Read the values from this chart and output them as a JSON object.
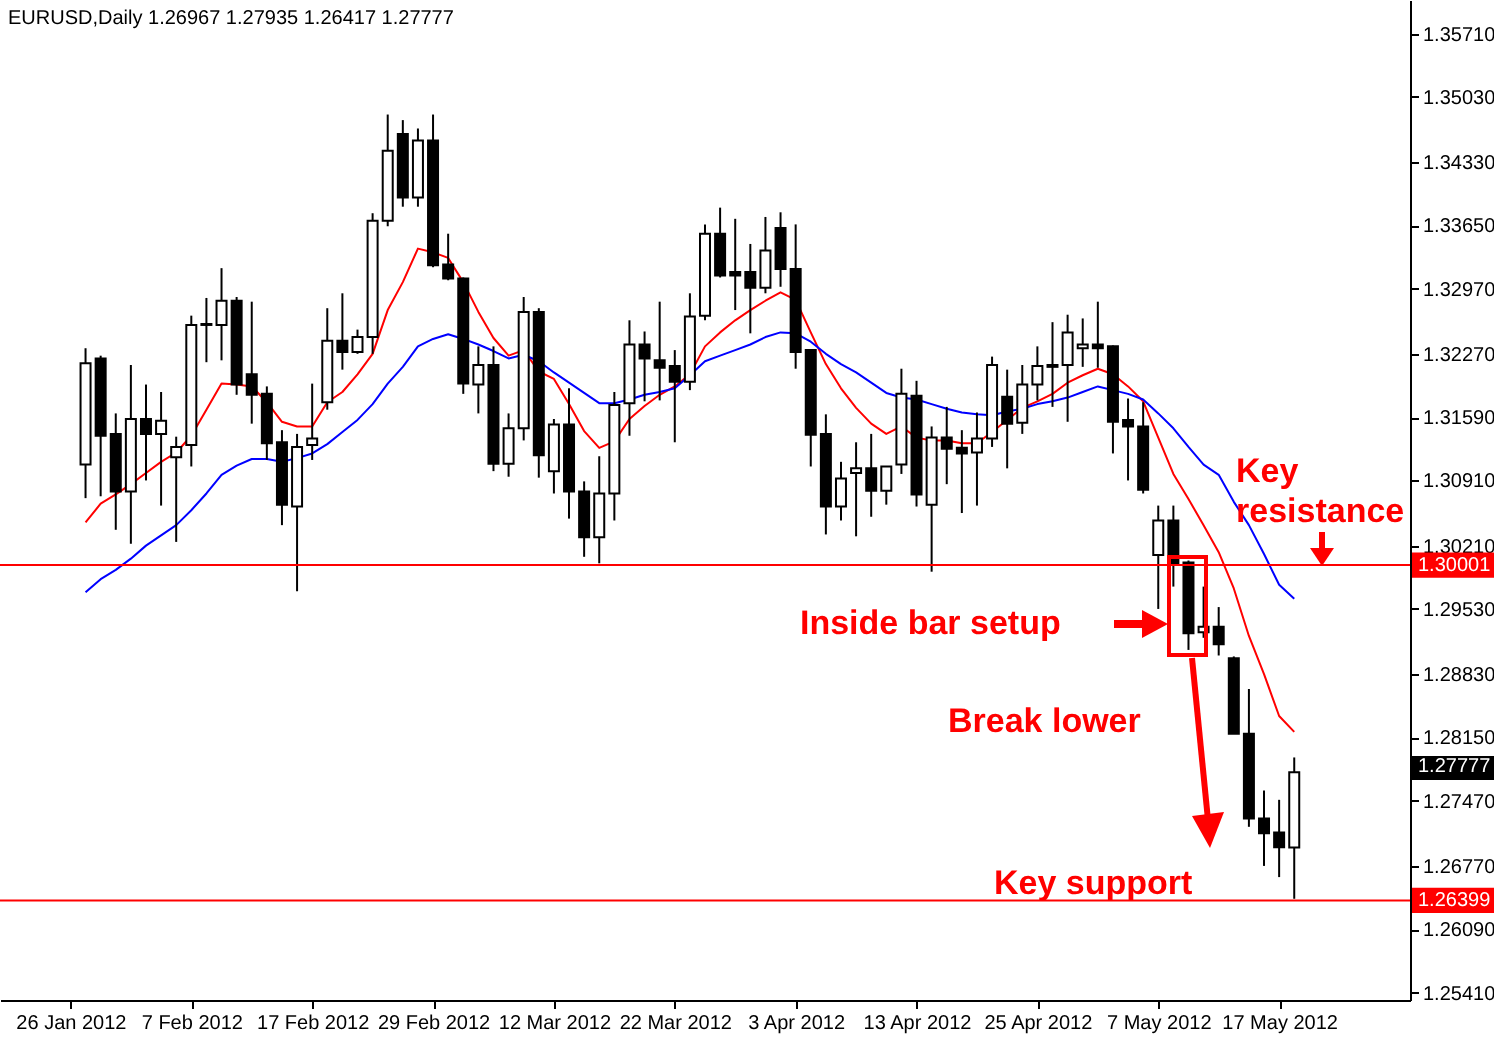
{
  "chart_data": {
    "type": "candlestick",
    "title": "EURUSD,Daily  1.26967 1.27935 1.26417 1.27777",
    "categories": [
      "26 Jan 2012",
      null,
      null,
      null,
      null,
      null,
      null,
      null,
      "7 Feb 2012",
      null,
      null,
      null,
      null,
      null,
      null,
      null,
      "17 Feb 2012",
      null,
      null,
      null,
      null,
      null,
      null,
      null,
      "29 Feb 2012",
      null,
      null,
      null,
      null,
      null,
      null,
      null,
      "12 Mar 2012",
      null,
      null,
      null,
      null,
      null,
      null,
      null,
      "22 Mar 2012",
      null,
      null,
      null,
      null,
      null,
      null,
      null,
      "3 Apr 2012",
      null,
      null,
      null,
      null,
      null,
      null,
      null,
      "13 Apr 2012",
      null,
      null,
      null,
      null,
      null,
      null,
      null,
      "25 Apr 2012",
      null,
      null,
      null,
      null,
      null,
      null,
      null,
      "7 May 2012",
      null,
      null,
      null,
      null,
      null,
      null,
      null,
      "17 May 2012",
      null
    ],
    "ohlc": [
      null,
      [
        1.3108,
        1.3233,
        1.3072,
        1.3217
      ],
      [
        1.3222,
        1.3225,
        1.3074,
        1.3139
      ],
      [
        1.3141,
        1.3163,
        1.3038,
        1.3079
      ],
      [
        1.3079,
        1.3215,
        1.3023,
        1.3157
      ],
      [
        1.3157,
        1.3194,
        1.3091,
        1.3141
      ],
      [
        1.3141,
        1.3186,
        1.3064,
        1.3155
      ],
      [
        1.3116,
        1.3138,
        1.3025,
        1.3127
      ],
      [
        1.3129,
        1.3268,
        1.3106,
        1.3258
      ],
      [
        1.3258,
        1.3287,
        1.3218,
        1.3259
      ],
      [
        1.3258,
        1.3319,
        1.322,
        1.3284
      ],
      [
        1.3284,
        1.3288,
        1.3183,
        1.3194
      ],
      [
        1.3205,
        1.3283,
        1.3152,
        1.3183
      ],
      [
        1.3184,
        1.3192,
        1.3113,
        1.3131
      ],
      [
        1.3132,
        1.3145,
        1.3043,
        1.3065
      ],
      [
        1.3063,
        1.3141,
        1.2972,
        1.3127
      ],
      [
        1.3129,
        1.3195,
        1.3113,
        1.3136
      ],
      [
        1.3175,
        1.3276,
        1.3167,
        1.3241
      ],
      [
        1.3241,
        1.3292,
        1.321,
        1.3229
      ],
      [
        1.3229,
        1.3253,
        1.3227,
        1.3245
      ],
      [
        1.3245,
        1.3378,
        1.3227,
        1.337
      ],
      [
        1.337,
        1.3484,
        1.3364,
        1.3445
      ],
      [
        1.3463,
        1.3478,
        1.3385,
        1.3395
      ],
      [
        1.3395,
        1.3469,
        1.3385,
        1.3456
      ],
      [
        1.3456,
        1.3484,
        1.332,
        1.3322
      ],
      [
        1.3323,
        1.3356,
        1.3306,
        1.3308
      ],
      [
        1.3308,
        1.3309,
        1.3184,
        1.3195
      ],
      [
        1.3194,
        1.3235,
        1.3163,
        1.3215
      ],
      [
        1.3215,
        1.3235,
        1.3101,
        1.3109
      ],
      [
        1.3109,
        1.3163,
        1.3095,
        1.3147
      ],
      [
        1.3147,
        1.3288,
        1.3134,
        1.3272
      ],
      [
        1.3272,
        1.3276,
        1.3094,
        1.3118
      ],
      [
        1.3101,
        1.3157,
        1.3077,
        1.3151
      ],
      [
        1.3151,
        1.319,
        1.305,
        1.3079
      ],
      [
        1.3079,
        1.309,
        1.3009,
        1.303
      ],
      [
        1.303,
        1.3117,
        1.3002,
        1.3077
      ],
      [
        1.3077,
        1.3186,
        1.3048,
        1.3172
      ],
      [
        1.3174,
        1.3263,
        1.3139,
        1.3237
      ],
      [
        1.3237,
        1.3251,
        1.3176,
        1.3222
      ],
      [
        1.322,
        1.3283,
        1.3177,
        1.3212
      ],
      [
        1.3214,
        1.3231,
        1.3132,
        1.3197
      ],
      [
        1.3197,
        1.3292,
        1.3188,
        1.3267
      ],
      [
        1.3268,
        1.3366,
        1.3263,
        1.3356
      ],
      [
        1.3356,
        1.3384,
        1.3309,
        1.3311
      ],
      [
        1.3315,
        1.3372,
        1.3274,
        1.3311
      ],
      [
        1.3315,
        1.3345,
        1.3249,
        1.3298
      ],
      [
        1.3298,
        1.3374,
        1.3292,
        1.3338
      ],
      [
        1.3362,
        1.3379,
        1.3299,
        1.3318
      ],
      [
        1.3318,
        1.3366,
        1.3211,
        1.3229
      ],
      [
        1.3231,
        1.3231,
        1.3106,
        1.314
      ],
      [
        1.3141,
        1.3162,
        1.3033,
        1.3063
      ],
      [
        1.3063,
        1.3111,
        1.3048,
        1.3093
      ],
      [
        1.3099,
        1.3132,
        1.3031,
        1.3104
      ],
      [
        1.3104,
        1.3141,
        1.3052,
        1.308
      ],
      [
        1.308,
        1.3106,
        1.3065,
        1.3106
      ],
      [
        1.3108,
        1.3211,
        1.3098,
        1.3184
      ],
      [
        1.3182,
        1.3198,
        1.3063,
        1.3076
      ],
      [
        1.3065,
        1.3149,
        1.2993,
        1.3137
      ],
      [
        1.3137,
        1.317,
        1.3087,
        1.3125
      ],
      [
        1.3126,
        1.3145,
        1.3056,
        1.312
      ],
      [
        1.3121,
        1.3164,
        1.3064,
        1.3136
      ],
      [
        1.3136,
        1.3224,
        1.3127,
        1.3215
      ],
      [
        1.3181,
        1.321,
        1.3104,
        1.3152
      ],
      [
        1.3153,
        1.3215,
        1.3141,
        1.3194
      ],
      [
        1.3194,
        1.3235,
        1.3177,
        1.3214
      ],
      [
        1.3215,
        1.3261,
        1.317,
        1.3213
      ],
      [
        1.3215,
        1.3269,
        1.3154,
        1.325
      ],
      [
        1.3233,
        1.3265,
        1.3213,
        1.3237
      ],
      [
        1.3237,
        1.3283,
        1.3212,
        1.3233
      ],
      [
        1.3235,
        1.3236,
        1.312,
        1.3154
      ],
      [
        1.3156,
        1.3179,
        1.3091,
        1.3149
      ],
      [
        1.3149,
        1.3175,
        1.3077,
        1.3081
      ],
      [
        1.3011,
        1.3064,
        1.2953,
        1.3048
      ],
      [
        1.3048,
        1.3064,
        1.2977,
        1.3002
      ],
      [
        1.3003,
        1.3005,
        1.2909,
        1.2927
      ],
      [
        1.2928,
        1.2977,
        1.2922,
        1.2934
      ],
      [
        1.2934,
        1.2955,
        1.2903,
        1.2915
      ],
      [
        1.29,
        1.2902,
        1.2819,
        1.2819
      ],
      [
        1.2819,
        1.2867,
        1.2719,
        1.2728
      ],
      [
        1.2728,
        1.2758,
        1.2677,
        1.2712
      ],
      [
        1.2713,
        1.2748,
        1.2665,
        1.2697
      ],
      [
        1.26967,
        1.27935,
        1.26417,
        1.27777
      ]
    ],
    "series": [
      {
        "type": "line",
        "color": "#ff0000",
        "values": [
          null,
          1.3046,
          1.3066,
          1.3076,
          1.3087,
          1.3099,
          1.3111,
          1.3121,
          1.3139,
          1.3167,
          1.3195,
          1.3194,
          1.3192,
          1.3175,
          1.3154,
          1.3149,
          1.3149,
          1.3175,
          1.3186,
          1.3205,
          1.3227,
          1.3274,
          1.3304,
          1.334,
          1.3336,
          1.333,
          1.3304,
          1.3272,
          1.3244,
          1.3225,
          1.3231,
          1.3208,
          1.32,
          1.3173,
          1.3144,
          1.3126,
          1.3133,
          1.3157,
          1.3171,
          1.3183,
          1.3192,
          1.3205,
          1.3235,
          1.325,
          1.3263,
          1.3274,
          1.3284,
          1.3293,
          1.3285,
          1.325,
          1.3216,
          1.319,
          1.3169,
          1.3152,
          1.3141,
          1.3149,
          1.3137,
          1.3134,
          1.3134,
          1.3131,
          1.3131,
          1.3143,
          1.3156,
          1.3169,
          1.3176,
          1.3184,
          1.3196,
          1.3204,
          1.3211,
          1.3205,
          1.3192,
          1.3176,
          1.3137,
          1.3098,
          1.3071,
          1.3043,
          1.3014,
          1.2975,
          1.2924,
          1.2883,
          1.2838,
          1.2821
        ]
      },
      {
        "type": "line",
        "color": "#0000ff",
        "values": [
          null,
          1.2971,
          1.2985,
          1.2995,
          1.3007,
          1.3021,
          1.3032,
          1.3043,
          1.3059,
          1.3077,
          1.3097,
          1.3107,
          1.3114,
          1.3114,
          1.3111,
          1.3115,
          1.312,
          1.313,
          1.3143,
          1.3156,
          1.3173,
          1.3195,
          1.3213,
          1.3235,
          1.3243,
          1.3248,
          1.3243,
          1.3237,
          1.323,
          1.3222,
          1.3226,
          1.3219,
          1.3207,
          1.3196,
          1.3185,
          1.3174,
          1.3174,
          1.3178,
          1.3183,
          1.3186,
          1.319,
          1.3204,
          1.3219,
          1.3225,
          1.3231,
          1.3237,
          1.3245,
          1.325,
          1.3249,
          1.324,
          1.3227,
          1.3216,
          1.3207,
          1.3196,
          1.3185,
          1.318,
          1.3178,
          1.3173,
          1.3168,
          1.3164,
          1.3162,
          1.3161,
          1.3165,
          1.3168,
          1.3173,
          1.3176,
          1.318,
          1.3186,
          1.3192,
          1.3188,
          1.3184,
          1.3178,
          1.3163,
          1.3147,
          1.3127,
          1.3108,
          1.3097,
          1.3068,
          1.3043,
          1.3012,
          1.2979,
          1.2964
        ]
      }
    ],
    "ylim": [
      1.2533,
      1.3607
    ],
    "yticks": [
      {
        "value": 1.3571,
        "label": "1.35710"
      },
      {
        "value": 1.3503,
        "label": "1.35030"
      },
      {
        "value": 1.3433,
        "label": "1.34330"
      },
      {
        "value": 1.3365,
        "label": "1.33650"
      },
      {
        "value": 1.3297,
        "label": "1.32970"
      },
      {
        "value": 1.3227,
        "label": "1.32270"
      },
      {
        "value": 1.3159,
        "label": "1.31590"
      },
      {
        "value": 1.3091,
        "label": "1.30910"
      },
      {
        "value": 1.3021,
        "label": "1.30210"
      },
      {
        "value": 1.2953,
        "label": "1.29530"
      },
      {
        "value": 1.2883,
        "label": "1.28830"
      },
      {
        "value": 1.2815,
        "label": "1.28150"
      },
      {
        "value": 1.2747,
        "label": "1.27470"
      },
      {
        "value": 1.2677,
        "label": "1.26770"
      },
      {
        "value": 1.2609,
        "label": "1.26090"
      },
      {
        "value": 1.2541,
        "label": "1.25410"
      }
    ],
    "ref_lines": [
      {
        "axis": "y",
        "value": 1.30001,
        "label": "1.30001",
        "color": "#ff0000"
      },
      {
        "axis": "y",
        "value": 1.26399,
        "label": "1.26399",
        "color": "#ff0000"
      }
    ],
    "annotations": [
      "Key resistance",
      "Inside bar setup",
      "Break lower",
      "Key support",
      "1.27777"
    ]
  }
}
